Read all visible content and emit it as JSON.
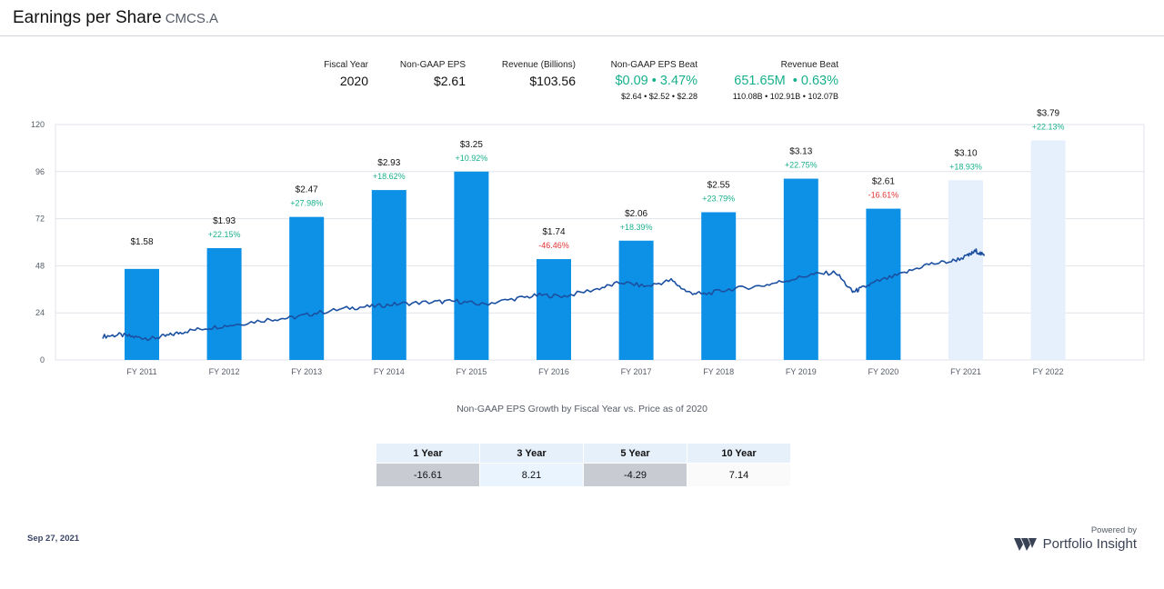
{
  "header": {
    "title": "Earnings per Share",
    "ticker": "CMCS.A"
  },
  "stats": {
    "fiscal_year": {
      "label": "Fiscal Year",
      "value": "2020"
    },
    "eps": {
      "label": "Non-GAAP EPS",
      "value": "$2.61"
    },
    "revenue": {
      "label": "Revenue (Billions)",
      "value": "$103.56"
    },
    "eps_beat": {
      "label": "Non-GAAP EPS Beat",
      "value": "$0.09 • 3.47%",
      "sub": "$2.64 • $2.52 • $2.28"
    },
    "revenue_beat": {
      "label": "Revenue Beat",
      "value": "651.65M  • 0.63%",
      "sub": "110.08B • 102.91B • 102.07B"
    }
  },
  "colors": {
    "bar": "#0d91e6",
    "bar_future": "#e6effc",
    "price_line": "#1b4fa0",
    "positive": "#18b08b",
    "negative": "#e33232",
    "grid": "#dfe3e8"
  },
  "chart_data": {
    "type": "bar",
    "categories": [
      "FY 2011",
      "FY 2012",
      "FY 2013",
      "FY 2014",
      "FY 2015",
      "FY 2016",
      "FY 2017",
      "FY 2018",
      "FY 2019",
      "FY 2020",
      "FY 2021",
      "FY 2022"
    ],
    "eps_labels": [
      "$1.58",
      "$1.93",
      "$2.47",
      "$2.93",
      "$3.25",
      "$1.74",
      "$2.06",
      "$2.55",
      "$3.13",
      "$2.61",
      "$3.10",
      "$3.79"
    ],
    "growth_labels": [
      "",
      "+22.15%",
      "+27.98%",
      "+18.62%",
      "+10.92%",
      "-46.46%",
      "+18.39%",
      "+23.79%",
      "+22.75%",
      "-16.61%",
      "+18.93%",
      "+22.13%"
    ],
    "values": [
      46.4,
      57.0,
      72.9,
      86.6,
      96.0,
      51.4,
      60.8,
      75.3,
      92.4,
      77.1,
      91.6,
      111.9
    ],
    "estimate": [
      false,
      false,
      false,
      false,
      false,
      false,
      false,
      false,
      false,
      false,
      true,
      true
    ],
    "yticks": [
      0,
      24,
      48,
      72,
      96,
      120
    ],
    "ylim": [
      0,
      120
    ],
    "series": [
      {
        "values_ref": "values"
      },
      {
        "type": "line",
        "x": [
          2011.0,
          2011.2,
          2011.4,
          2011.6,
          2011.8,
          2012.0,
          2012.3,
          2012.6,
          2013.0,
          2013.3,
          2013.6,
          2014.0,
          2014.3,
          2014.6,
          2015.0,
          2015.3,
          2015.6,
          2016.0,
          2016.3,
          2016.6,
          2017.0,
          2017.3,
          2017.6,
          2017.9,
          2018.1,
          2018.3,
          2018.6,
          2019.0,
          2019.3,
          2019.6,
          2019.9,
          2020.1,
          2020.2,
          2020.4,
          2020.7,
          2021.0,
          2021.3,
          2021.5,
          2021.6,
          2021.7
        ],
        "values": [
          12.0,
          12.8,
          11.6,
          10.9,
          12.5,
          14.6,
          16.5,
          18.0,
          20.6,
          21.5,
          24.0,
          26.5,
          27.4,
          28.6,
          29.5,
          29.9,
          28.3,
          31.2,
          33.0,
          32.5,
          36.2,
          39.5,
          37.5,
          40.6,
          34.5,
          33.5,
          36.0,
          37.8,
          40.5,
          43.5,
          44.6,
          34.6,
          36.3,
          40.0,
          43.8,
          48.6,
          50.3,
          53.0,
          55.6,
          53.0
        ]
      }
    ],
    "caption": "Non-GAAP EPS Growth by Fiscal Year vs. Price as of 2020"
  },
  "growth_table": {
    "headers": [
      "1 Year",
      "3 Year",
      "5 Year",
      "10 Year"
    ],
    "values": [
      "-16.61",
      "8.21",
      "-4.29",
      "7.14"
    ]
  },
  "footer": {
    "date": "Sep 27, 2021",
    "powered_by": "Powered by",
    "brand": "Portfolio Insight"
  }
}
